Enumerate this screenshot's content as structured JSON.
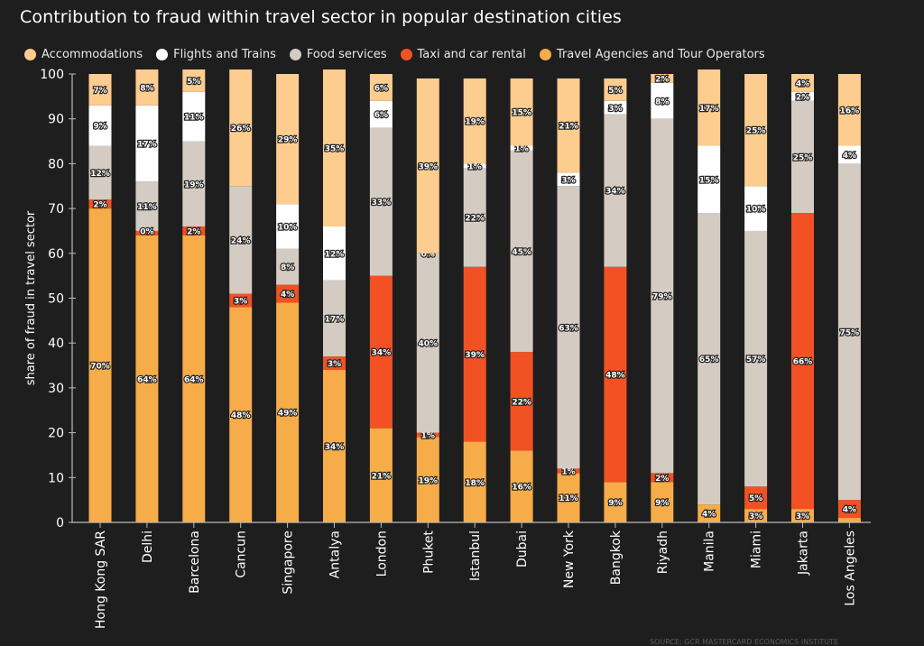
{
  "title": "Contribution to fraud within travel sector in popular destination cities",
  "source": "SOURCE: GCR MASTERCARD ECONOMICS INSTITUTE",
  "colors": {
    "accommodations": "#fdcc8f",
    "flights": "#ffffff",
    "food": "#d4ccc2",
    "taxi": "#f25123",
    "agencies": "#f6ac48",
    "background": "#1e1e1e"
  },
  "chart_data": {
    "type": "bar",
    "stacked": true,
    "title": "Contribution to fraud within travel sector in popular destination cities",
    "xlabel": "",
    "ylabel": "share of fraud in travel sector",
    "ylim": [
      0,
      100
    ],
    "yticks": [
      0,
      10,
      20,
      30,
      40,
      50,
      60,
      70,
      80,
      90,
      100
    ],
    "legend_position": "top",
    "categories": [
      "Hong Kong SAR",
      "Delhi",
      "Barcelona",
      "Cancun",
      "Singapore",
      "Antalya",
      "London",
      "Phuket",
      "Istanbul",
      "Dubai",
      "New York",
      "Bangkok",
      "Riyadh",
      "Manila",
      "Miami",
      "Jakarta",
      "Los Angeles"
    ],
    "series": [
      {
        "key": "agencies",
        "name": "Travel Agencies and Tour Operators",
        "values": [
          70,
          64,
          64,
          48,
          49,
          34,
          21,
          19,
          18,
          16,
          11,
          9,
          9,
          4,
          3,
          3,
          1
        ],
        "labels": [
          "70%",
          "64%",
          "64%",
          "48%",
          "49%",
          "34%",
          "21%",
          "19%",
          "18%",
          "16%",
          "11%",
          "9%",
          "9%",
          "4%",
          "3%",
          "3%",
          ""
        ]
      },
      {
        "key": "taxi",
        "name": "Taxi and car rental",
        "values": [
          2,
          1,
          2,
          3,
          4,
          3,
          34,
          1,
          39,
          22,
          1,
          48,
          2,
          0,
          5,
          66,
          4
        ],
        "labels": [
          "2%",
          "",
          "2%",
          "3%",
          "4%",
          "3%",
          "34%",
          "1%",
          "39%",
          "22%",
          "1%",
          "48%",
          "2%",
          "",
          "5%",
          "66%",
          "4%"
        ]
      },
      {
        "key": "food",
        "name": "Food services",
        "values": [
          12,
          11,
          19,
          24,
          8,
          17,
          33,
          40,
          22,
          45,
          63,
          34,
          79,
          65,
          57,
          25,
          75
        ],
        "labels": [
          "12%",
          "11%",
          "19%",
          "24%",
          "8%",
          "17%",
          "33%",
          "40%",
          "22%",
          "45%",
          "63%",
          "34%",
          "79%",
          "65%",
          "57%",
          "25%",
          "75%"
        ]
      },
      {
        "key": "flights",
        "name": "Flights and Trains",
        "values": [
          9,
          17,
          11,
          0,
          10,
          12,
          6,
          0,
          1,
          1,
          3,
          3,
          8,
          15,
          10,
          2,
          4
        ],
        "labels": [
          "9%",
          "17%",
          "11%",
          "",
          "10%",
          "12%",
          "6%",
          "0%",
          "1%",
          "1%",
          "3%",
          "3%",
          "8%",
          "15%",
          "10%",
          "2%",
          "4%"
        ]
      },
      {
        "key": "accommodations",
        "name": "Accommodations",
        "values": [
          7,
          8,
          5,
          26,
          29,
          35,
          6,
          39,
          19,
          15,
          21,
          5,
          2,
          17,
          25,
          4,
          16
        ],
        "labels": [
          "7%",
          "8%",
          "5%",
          "26%",
          "29%",
          "35%",
          "6%",
          "39%",
          "19%",
          "15%",
          "21%",
          "5%",
          "2%",
          "17%",
          "25%",
          "4%",
          "16%"
        ]
      }
    ],
    "extra_labels": [
      {
        "category": "Delhi",
        "text": "0%"
      }
    ]
  },
  "legend_order": [
    "accommodations",
    "flights",
    "food",
    "taxi",
    "agencies"
  ]
}
